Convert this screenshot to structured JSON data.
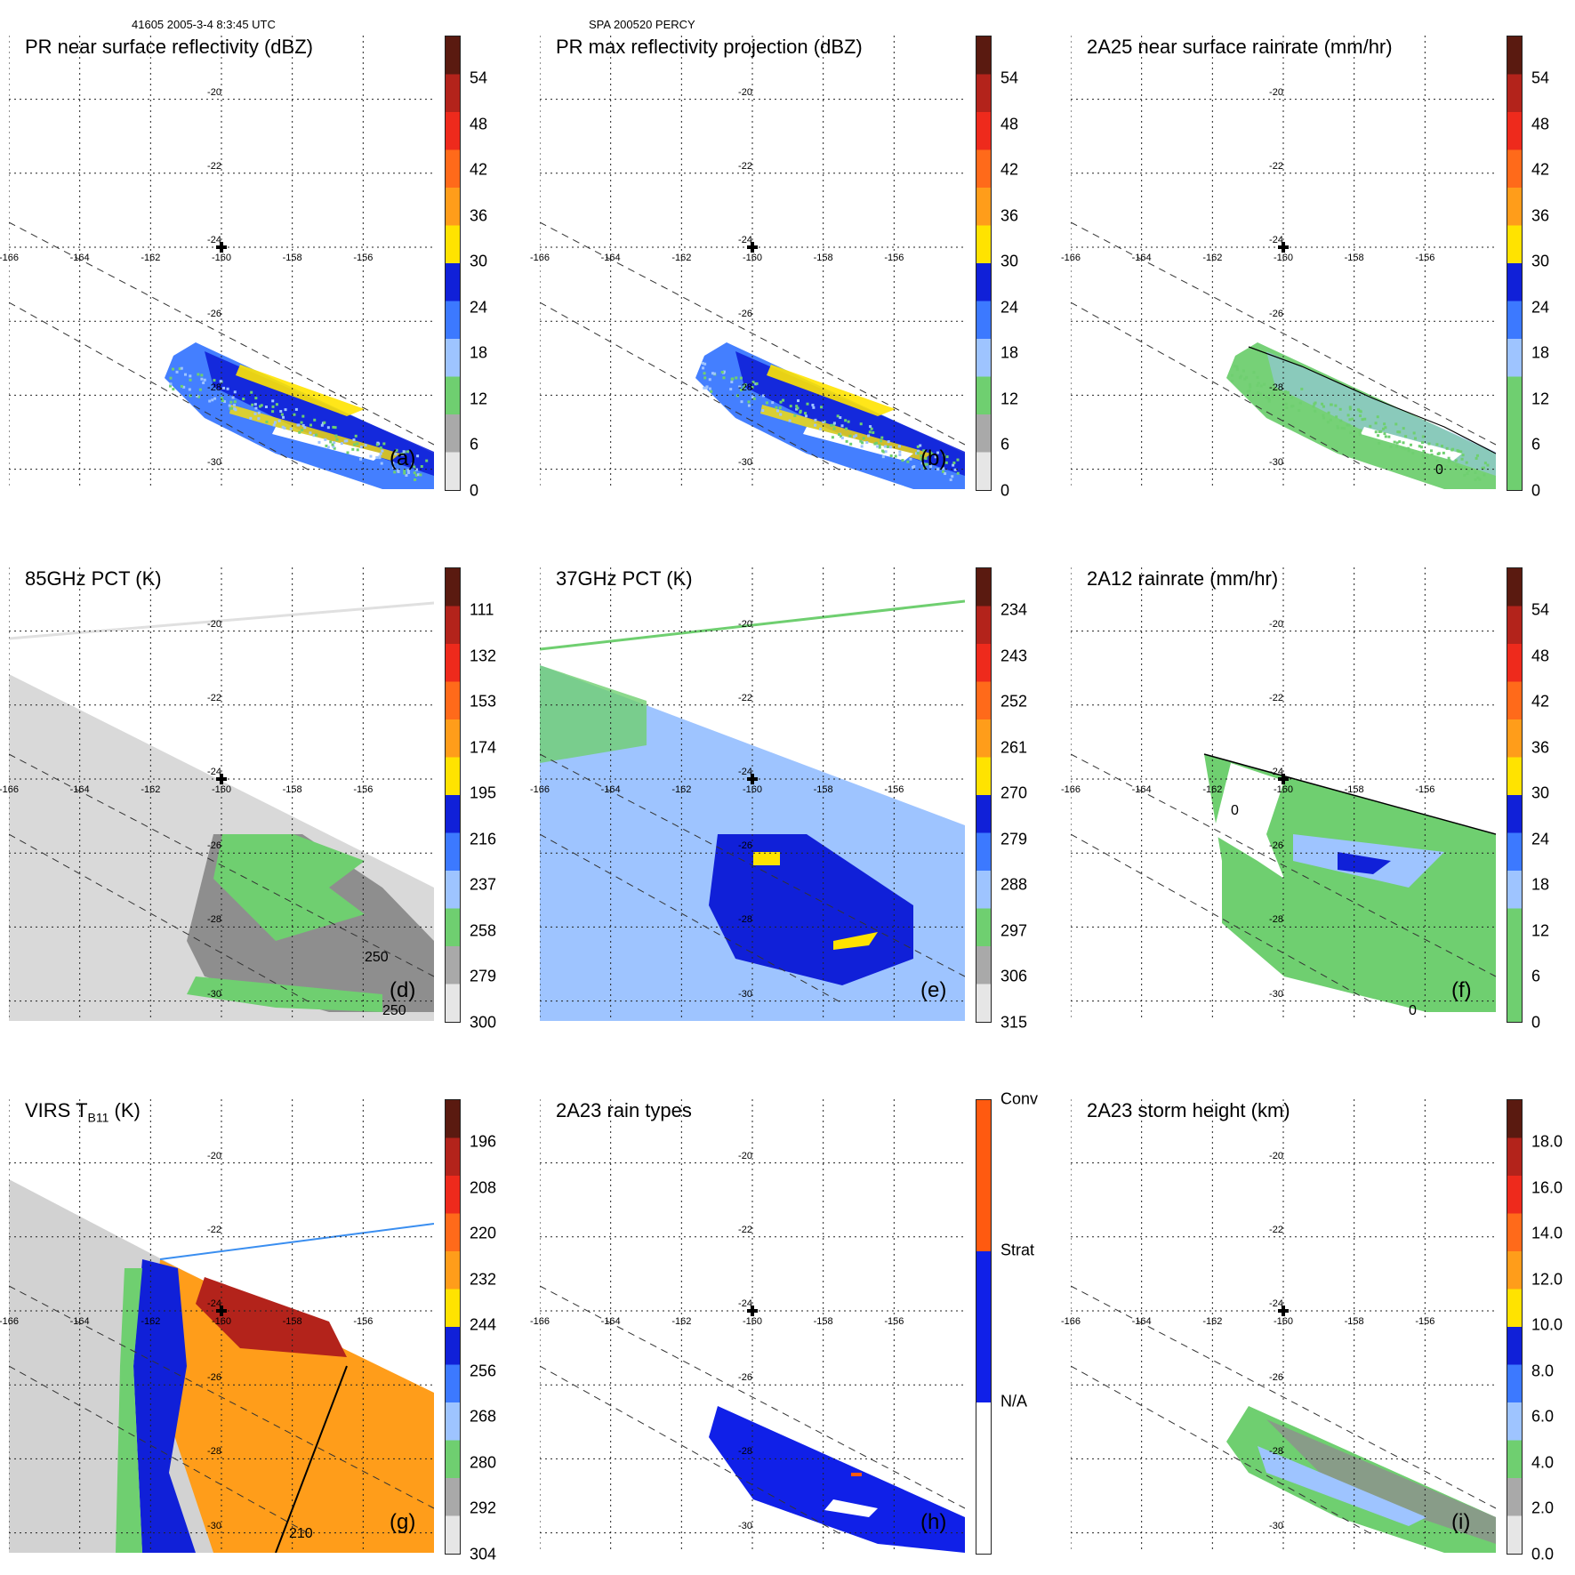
{
  "header": {
    "left": "41605 2005-3-4 8:3:45 UTC",
    "center": "SPA 200520 PERCY"
  },
  "grid": {
    "lon_ticks": [
      -166,
      -164,
      -162,
      -160,
      -158,
      -156
    ],
    "lat_ticks": [
      -20,
      -22,
      -24,
      -26,
      -28,
      -30
    ]
  },
  "panels": [
    {
      "title": "PR near surface reflectivity (dBZ)",
      "label": "(a)",
      "kind": "swath",
      "colorbar": {
        "labels": [
          "54",
          "48",
          "42",
          "36",
          "30",
          "24",
          "18",
          "12",
          "6",
          "0"
        ],
        "colors": [
          "#5a1a10",
          "#b3231b",
          "#ee2a1c",
          "#ff6a1a",
          "#ff9d1a",
          "#ffe300",
          "#1020d8",
          "#3c79ff",
          "#9ec4ff",
          "#6fcf70",
          "#a9a9a9",
          "#e6e6e6"
        ]
      }
    },
    {
      "title": "PR max reflectivity projection (dBZ)",
      "label": "(b)",
      "kind": "swath",
      "colorbar": {
        "labels": [
          "54",
          "48",
          "42",
          "36",
          "30",
          "24",
          "18",
          "12",
          "6",
          "0"
        ],
        "colors": [
          "#5a1a10",
          "#b3231b",
          "#ee2a1c",
          "#ff6a1a",
          "#ff9d1a",
          "#ffe300",
          "#1020d8",
          "#3c79ff",
          "#9ec4ff",
          "#6fcf70",
          "#a9a9a9",
          "#e6e6e6"
        ]
      }
    },
    {
      "title": "2A25 near surface rainrate (mm/hr)",
      "label": "",
      "kind": "swath",
      "colorbar": {
        "labels": [
          "54",
          "48",
          "42",
          "36",
          "30",
          "24",
          "18",
          "12",
          "6",
          "0"
        ],
        "colors": [
          "#5a1a10",
          "#b3231b",
          "#ee2a1c",
          "#ff6a1a",
          "#ff9d1a",
          "#ffe300",
          "#1020d8",
          "#3c79ff",
          "#9ec4ff",
          "#6fcf70",
          "#6fcf70",
          "#6fcf70"
        ]
      }
    },
    {
      "title": "85GHz PCT (K)",
      "label": "(d)",
      "kind": "pm85",
      "colorbar": {
        "labels": [
          "111",
          "132",
          "153",
          "174",
          "195",
          "216",
          "237",
          "258",
          "279",
          "300"
        ],
        "colors": [
          "#5a1a10",
          "#b3231b",
          "#ee2a1c",
          "#ff6a1a",
          "#ff9d1a",
          "#ffe300",
          "#1020d8",
          "#3c79ff",
          "#9ec4ff",
          "#6fcf70",
          "#a9a9a9",
          "#e6e6e6"
        ]
      }
    },
    {
      "title": "37GHz PCT (K)",
      "label": "(e)",
      "kind": "pm37",
      "colorbar": {
        "labels": [
          "234",
          "243",
          "252",
          "261",
          "270",
          "279",
          "288",
          "297",
          "306",
          "315"
        ],
        "colors": [
          "#5a1a10",
          "#b3231b",
          "#ee2a1c",
          "#ff6a1a",
          "#ff9d1a",
          "#ffe300",
          "#1020d8",
          "#3c79ff",
          "#9ec4ff",
          "#6fcf70",
          "#a9a9a9",
          "#e6e6e6"
        ]
      }
    },
    {
      "title": "2A12 rainrate (mm/hr)",
      "label": "(f)",
      "kind": "pmrain",
      "colorbar": {
        "labels": [
          "54",
          "48",
          "42",
          "36",
          "30",
          "24",
          "18",
          "12",
          "6",
          "0"
        ],
        "colors": [
          "#5a1a10",
          "#b3231b",
          "#ee2a1c",
          "#ff6a1a",
          "#ff9d1a",
          "#ffe300",
          "#1020d8",
          "#3c79ff",
          "#9ec4ff",
          "#6fcf70",
          "#6fcf70",
          "#6fcf70"
        ]
      }
    },
    {
      "title": "VIRS T",
      "title_sub": "B11",
      "title_tail": " (K)",
      "label": "(g)",
      "kind": "virs",
      "colorbar": {
        "labels": [
          "196",
          "208",
          "220",
          "232",
          "244",
          "256",
          "268",
          "280",
          "292",
          "304"
        ],
        "colors": [
          "#5a1a10",
          "#b3231b",
          "#ee2a1c",
          "#ff6a1a",
          "#ff9d1a",
          "#ffe300",
          "#1020d8",
          "#3c79ff",
          "#9ec4ff",
          "#6fcf70",
          "#a9a9a9",
          "#e6e6e6"
        ]
      }
    },
    {
      "title": "2A23 rain types",
      "label": "(h)",
      "kind": "types",
      "colorbar": {
        "labels": [
          "Conv",
          "Strat",
          "N/A"
        ],
        "colors": [
          "#ff5a10",
          "#1020e8",
          "#ffffff"
        ]
      }
    },
    {
      "title": "2A23 storm height (km)",
      "label": "(i)",
      "kind": "height",
      "colorbar": {
        "labels": [
          "18.0",
          "16.0",
          "14.0",
          "12.0",
          "10.0",
          "8.0",
          "6.0",
          "4.0",
          "2.0",
          "0.0"
        ],
        "colors": [
          "#5a1a10",
          "#b3231b",
          "#ee2a1c",
          "#ff6a1a",
          "#ff9d1a",
          "#ffe300",
          "#1020d8",
          "#3c79ff",
          "#9ec4ff",
          "#6fcf70",
          "#a9a9a9",
          "#e6e6e6"
        ]
      }
    }
  ],
  "contour_labels": {
    "d_250a": "250",
    "d_250b": "250",
    "c_0": "0",
    "f_0a": "0",
    "f_0b": "0",
    "g_210": "210"
  }
}
